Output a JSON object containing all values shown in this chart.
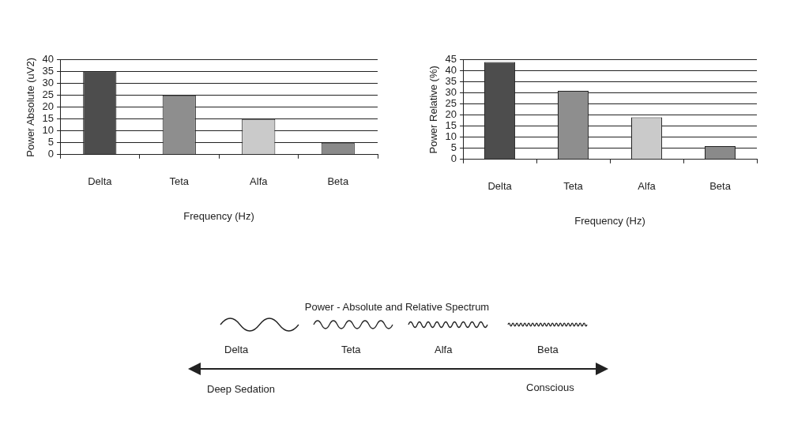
{
  "chart_data": [
    {
      "type": "bar",
      "xlabel": "Frequency (Hz)",
      "ylabel": "Power Absolute (uV2)",
      "categories": [
        "Delta",
        "Teta",
        "Alfa",
        "Beta"
      ],
      "values": [
        35,
        25,
        15,
        5
      ],
      "colors": [
        "#4d4d4d",
        "#8e8e8e",
        "#cacaca",
        "#8a8a8a"
      ],
      "ylim": [
        0,
        40
      ],
      "yticks": [
        0,
        5,
        10,
        15,
        20,
        25,
        30,
        35,
        40
      ],
      "grid": "y",
      "legend": false
    },
    {
      "type": "bar",
      "xlabel": "Frequency (Hz)",
      "ylabel": "Power Relative (%)",
      "categories": [
        "Delta",
        "Teta",
        "Alfa",
        "Beta"
      ],
      "values": [
        44,
        31,
        19,
        6
      ],
      "colors": [
        "#4d4d4d",
        "#8e8e8e",
        "#cacaca",
        "#8a8a8a"
      ],
      "ylim": [
        0,
        45
      ],
      "yticks": [
        0,
        5,
        10,
        15,
        20,
        25,
        30,
        35,
        40,
        45
      ],
      "grid": "y",
      "legend": false
    },
    {
      "type": "other",
      "title": "Power - Absolute and Relative Spectrum",
      "categories": [
        "Delta",
        "Teta",
        "Alfa",
        "Beta"
      ],
      "annotations": [
        "Deep Sedation",
        "Conscious"
      ]
    }
  ]
}
